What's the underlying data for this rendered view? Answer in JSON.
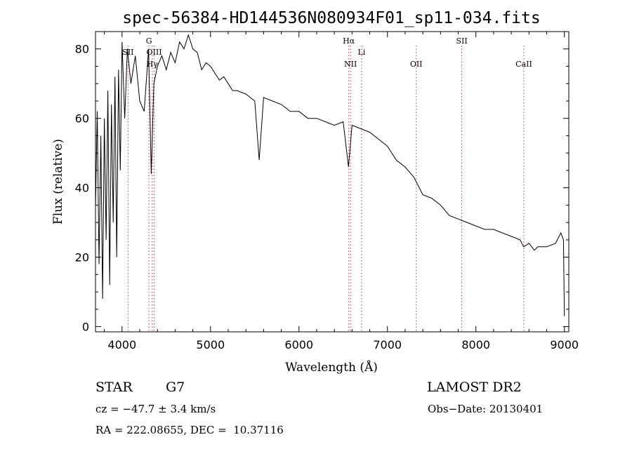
{
  "chart_data": {
    "type": "line",
    "title": "spec-56384-HD144536N080934F01_sp11-034.fits",
    "xlabel": "Wavelength (Å)",
    "ylabel": "Flux (relative)",
    "xlim": [
      3700,
      9050
    ],
    "ylim": [
      -1.5,
      85
    ],
    "xticks": [
      4000,
      5000,
      6000,
      7000,
      8000,
      9000
    ],
    "yticks": [
      0,
      20,
      40,
      60,
      80
    ],
    "grid": false,
    "line_color": "#000000",
    "marker_color": "#cc3333",
    "spectral_lines": [
      {
        "label": "SII",
        "x": 4068,
        "row": 2
      },
      {
        "label": "G",
        "x": 4304,
        "row": 1
      },
      {
        "label": "OIII",
        "x": 4363,
        "row": 2
      },
      {
        "label": "Hγ",
        "x": 4341,
        "row": 3
      },
      {
        "label": "Hα",
        "x": 6563,
        "row": 1
      },
      {
        "label": "Li",
        "x": 6708,
        "row": 2
      },
      {
        "label": "NII",
        "x": 6583,
        "row": 3
      },
      {
        "label": "OII",
        "x": 7325,
        "row": 3
      },
      {
        "label": "SII",
        "x": 7840,
        "row": 1
      },
      {
        "label": "CaII",
        "x": 8542,
        "row": 3
      }
    ],
    "series": [
      {
        "x": [
          3700,
          3720,
          3740,
          3760,
          3780,
          3800,
          3820,
          3840,
          3860,
          3880,
          3900,
          3920,
          3940,
          3960,
          3980,
          4000,
          4030,
          4060,
          4100,
          4150,
          4200,
          4250,
          4300,
          4330,
          4360,
          4400,
          4450,
          4500,
          4550,
          4600,
          4650,
          4700,
          4750,
          4800,
          4850,
          4900,
          4950,
          5000,
          5050,
          5100,
          5150,
          5200,
          5250,
          5300,
          5400,
          5500,
          5550,
          5600,
          5700,
          5800,
          5900,
          6000,
          6100,
          6200,
          6300,
          6400,
          6500,
          6560,
          6600,
          6700,
          6800,
          6900,
          7000,
          7100,
          7200,
          7300,
          7400,
          7500,
          7600,
          7700,
          7800,
          7900,
          8000,
          8100,
          8200,
          8300,
          8400,
          8500,
          8540,
          8600,
          8660,
          8700,
          8800,
          8900,
          8960,
          8990,
          9000
        ],
        "y": [
          34,
          62,
          18,
          55,
          8,
          60,
          25,
          68,
          12,
          64,
          30,
          72,
          20,
          74,
          45,
          82,
          60,
          80,
          70,
          78,
          65,
          62,
          80,
          44,
          70,
          75,
          78,
          74,
          79,
          76,
          82,
          80,
          84,
          80,
          79,
          74,
          76,
          75,
          73,
          71,
          72,
          70,
          68,
          68,
          67,
          65,
          48,
          66,
          65,
          64,
          62,
          62,
          60,
          60,
          59,
          58,
          59,
          46,
          58,
          57,
          56,
          54,
          52,
          48,
          46,
          43,
          38,
          37,
          35,
          32,
          31,
          30,
          29,
          28,
          28,
          27,
          26,
          25,
          23,
          24,
          22,
          23,
          23,
          24,
          27,
          25,
          3
        ]
      }
    ]
  },
  "footer": {
    "object_type": "STAR",
    "subclass": "G7",
    "survey": "LAMOST DR2",
    "cz": "cz = −47.7 ± 3.4 km/s",
    "obs_date": "Obs−Date: 20130401",
    "coords": "RA = 222.08655, DEC =  10.37116"
  }
}
